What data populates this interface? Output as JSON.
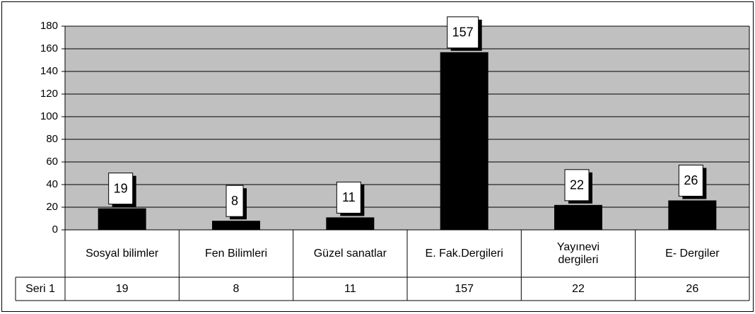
{
  "chart_data": {
    "type": "bar",
    "categories": [
      "Sosyal bilimler",
      "Fen Bilimleri",
      "Güzel sanatlar",
      "E. Fak.Dergileri",
      "Yayınevi dergileri",
      "E- Dergiler"
    ],
    "series": [
      {
        "name": "Seri 1",
        "color": "#000000",
        "values": [
          19,
          8,
          11,
          157,
          22,
          26
        ]
      }
    ],
    "ylim": [
      0,
      180
    ],
    "yticks": [
      0,
      20,
      40,
      60,
      80,
      100,
      120,
      140,
      160,
      180
    ],
    "grid": true
  }
}
